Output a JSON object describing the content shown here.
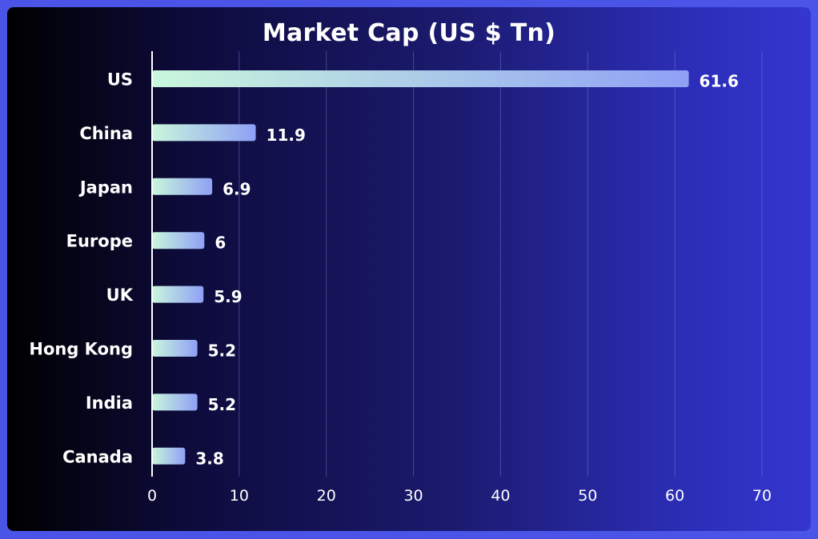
{
  "chart_data": {
    "type": "bar",
    "orientation": "horizontal",
    "title": "Market Cap (US $ Tn)",
    "categories": [
      "US",
      "China",
      "Japan",
      "Europe",
      "UK",
      "Hong Kong",
      "India",
      "Canada"
    ],
    "values": [
      61.6,
      11.9,
      6.9,
      6,
      5.9,
      5.2,
      5.2,
      3.8
    ],
    "value_labels": [
      "61.6",
      "11.9",
      "6.9",
      "6",
      "5.9",
      "5.2",
      "5.2",
      "3.8"
    ],
    "xlim": [
      0,
      70
    ],
    "xticks": [
      0,
      10,
      20,
      30,
      40,
      50,
      60,
      70
    ],
    "xlabel": "",
    "ylabel": "",
    "grid": true,
    "colors": {
      "bar_start": "#c9f7dc",
      "bar_end": "#8fa0f5",
      "text": "#ffffff",
      "grid": "#6b6fc9",
      "axis": "#ffffff"
    }
  }
}
